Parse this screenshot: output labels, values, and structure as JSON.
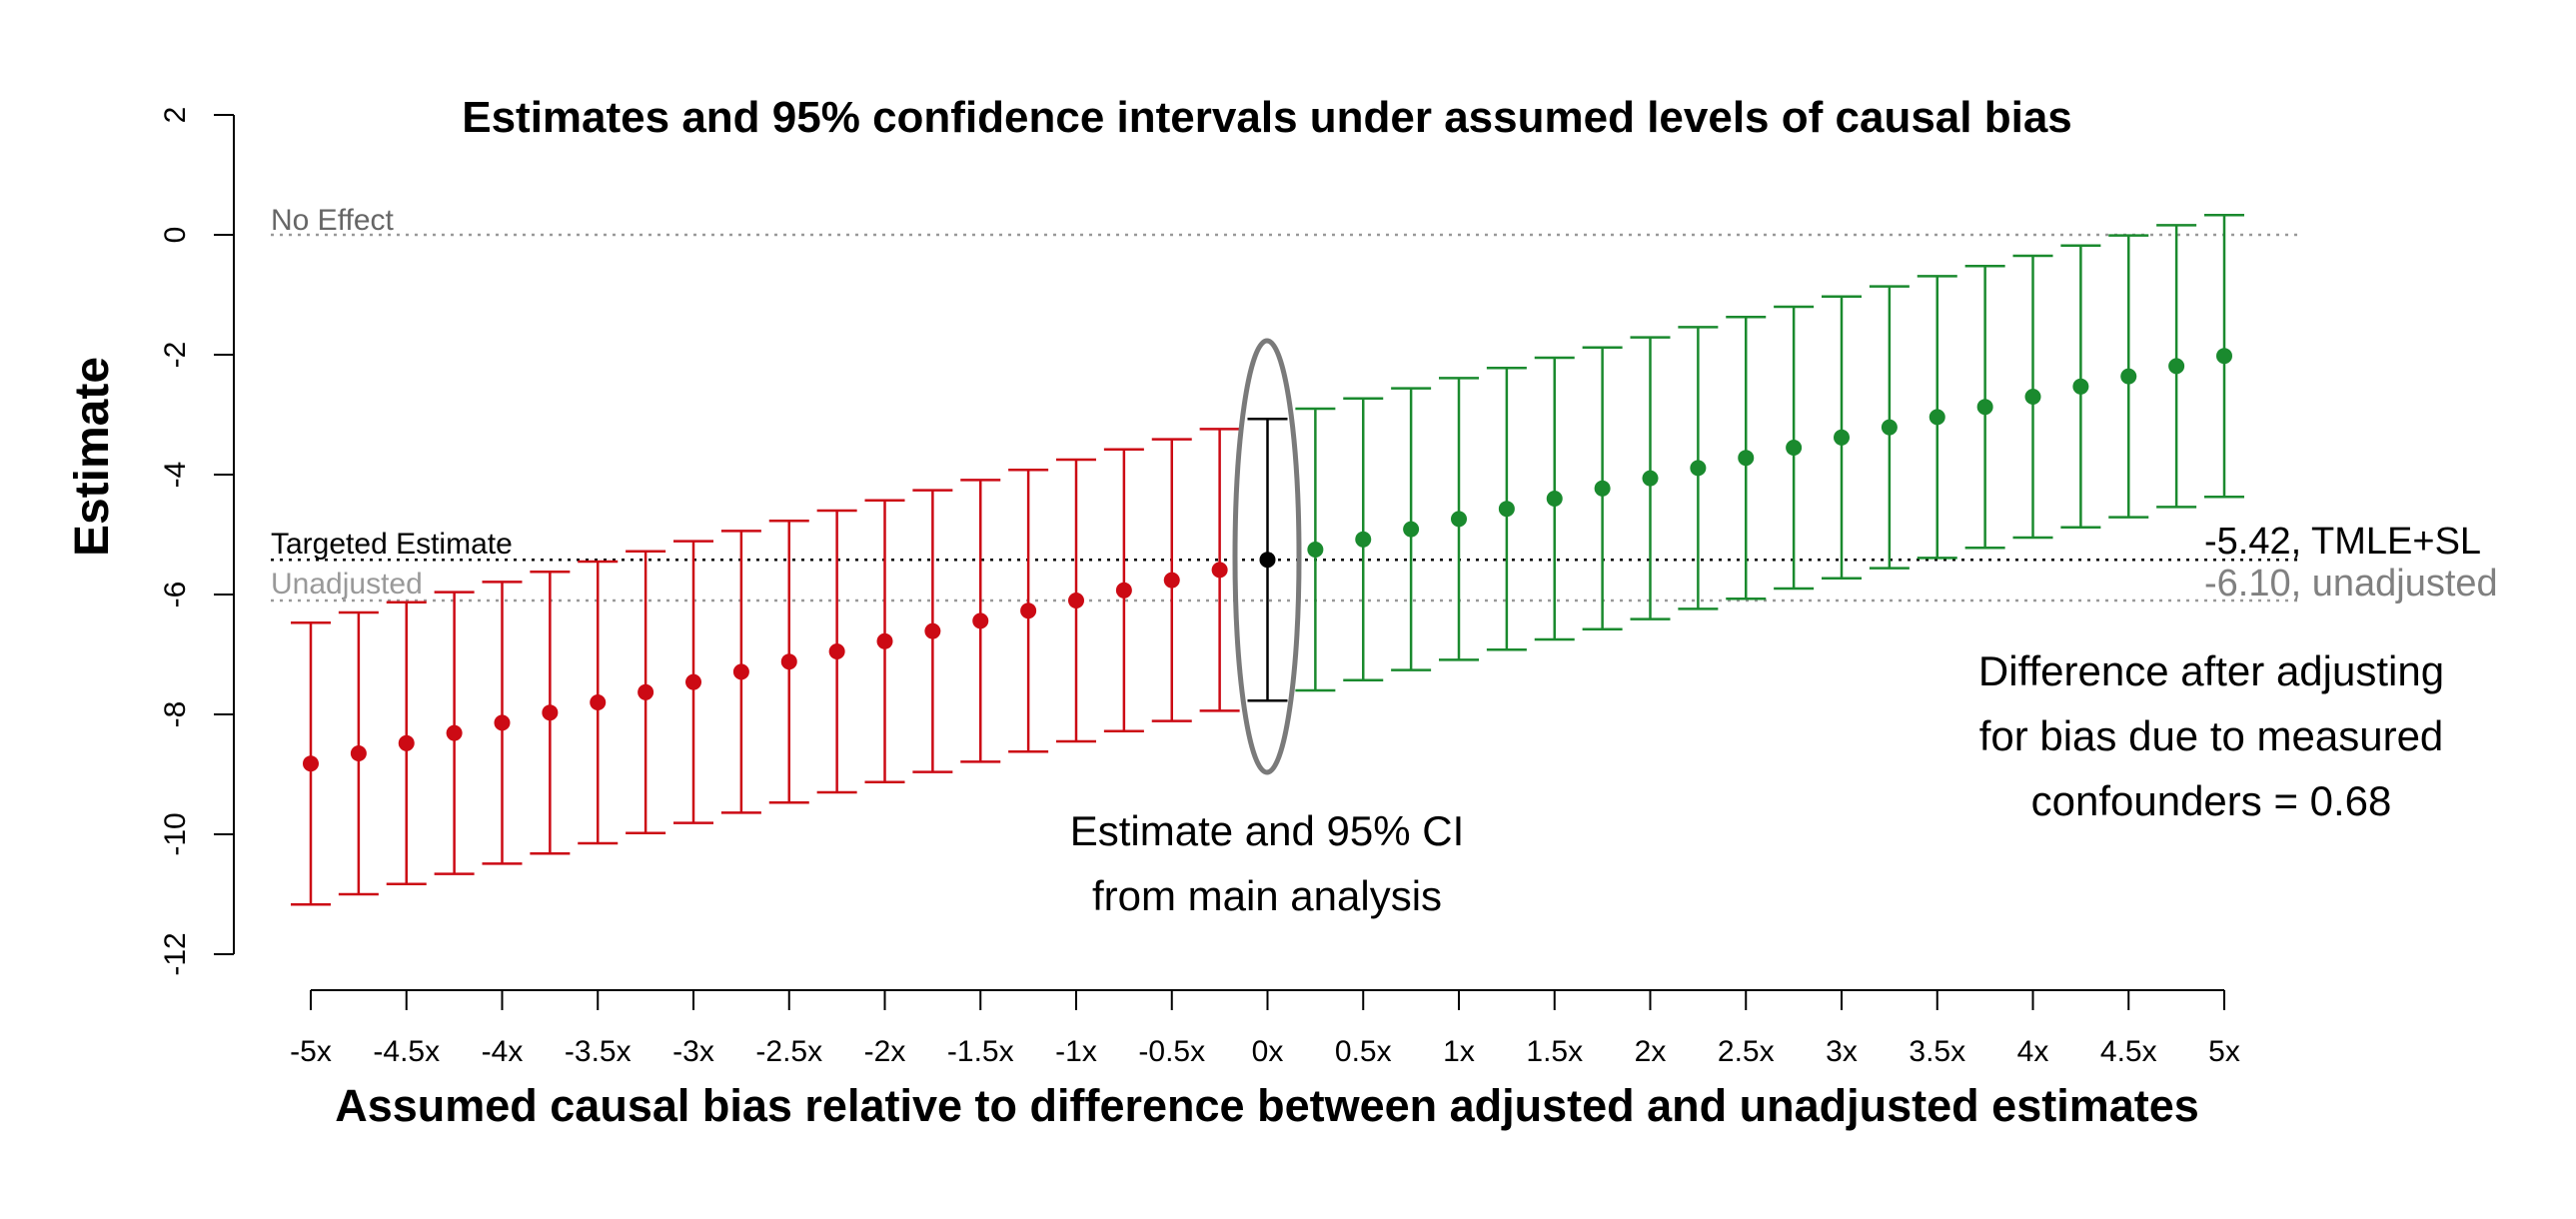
{
  "chart_data": {
    "type": "scatter",
    "title": "Estimates and 95% confidence intervals under assumed levels of causal bias",
    "xlabel": "Assumed causal bias relative to difference between adjusted and unadjusted estimates",
    "ylabel": "Estimate",
    "ylim": [
      -12,
      2
    ],
    "y_ticks": [
      2,
      0,
      -2,
      -4,
      -6,
      -8,
      -10,
      -12
    ],
    "x_ticks": [
      -5,
      -4.5,
      -4,
      -3.5,
      -3,
      -2.5,
      -2,
      -1.5,
      -1,
      -0.5,
      0,
      0.5,
      1,
      1.5,
      2,
      2.5,
      3,
      3.5,
      4,
      4.5,
      5
    ],
    "x_tick_labels": [
      "-5x",
      "-4.5x",
      "-4x",
      "-3.5x",
      "-3x",
      "-2.5x",
      "-2x",
      "-1.5x",
      "-1x",
      "-0.5x",
      "0x",
      "0.5x",
      "1x",
      "1.5x",
      "2x",
      "2.5x",
      "3x",
      "3.5x",
      "4x",
      "4.5x",
      "5x"
    ],
    "grid": false,
    "x": [
      -5,
      -4.75,
      -4.5,
      -4.25,
      -4,
      -3.75,
      -3.5,
      -3.25,
      -3,
      -2.75,
      -2.5,
      -2.25,
      -2,
      -1.75,
      -1.5,
      -1.25,
      -1,
      -0.75,
      -0.5,
      -0.25,
      0,
      0.25,
      0.5,
      0.75,
      1,
      1.25,
      1.5,
      1.75,
      2,
      2.25,
      2.5,
      2.75,
      3,
      3.25,
      3.5,
      3.75,
      4,
      4.25,
      4.5,
      4.75,
      5
    ],
    "estimate": [
      -8.82,
      -8.65,
      -8.48,
      -8.31,
      -8.14,
      -7.97,
      -7.8,
      -7.63,
      -7.46,
      -7.29,
      -7.12,
      -6.95,
      -6.78,
      -6.61,
      -6.44,
      -6.27,
      -6.1,
      -5.93,
      -5.76,
      -5.59,
      -5.42,
      -5.25,
      -5.08,
      -4.91,
      -4.74,
      -4.57,
      -4.4,
      -4.23,
      -4.06,
      -3.89,
      -3.72,
      -3.55,
      -3.38,
      -3.21,
      -3.04,
      -2.87,
      -2.7,
      -2.53,
      -2.36,
      -2.19,
      -2.02
    ],
    "ci_lower": [
      -11.17,
      -11.0,
      -10.83,
      -10.66,
      -10.49,
      -10.32,
      -10.15,
      -9.98,
      -9.81,
      -9.64,
      -9.47,
      -9.3,
      -9.13,
      -8.96,
      -8.79,
      -8.62,
      -8.45,
      -8.28,
      -8.11,
      -7.94,
      -7.77,
      -7.6,
      -7.43,
      -7.26,
      -7.09,
      -6.92,
      -6.75,
      -6.58,
      -6.41,
      -6.24,
      -6.07,
      -5.9,
      -5.73,
      -5.56,
      -5.39,
      -5.22,
      -5.05,
      -4.88,
      -4.71,
      -4.54,
      -4.37
    ],
    "ci_upper": [
      -6.47,
      -6.3,
      -6.13,
      -5.96,
      -5.79,
      -5.62,
      -5.45,
      -5.28,
      -5.11,
      -4.94,
      -4.77,
      -4.6,
      -4.43,
      -4.26,
      -4.09,
      -3.92,
      -3.75,
      -3.58,
      -3.41,
      -3.24,
      -3.07,
      -2.9,
      -2.73,
      -2.56,
      -2.39,
      -2.22,
      -2.05,
      -1.88,
      -1.71,
      -1.54,
      -1.37,
      -1.2,
      -1.03,
      -0.86,
      -0.69,
      -0.52,
      -0.35,
      -0.18,
      -0.01,
      0.16,
      0.33
    ],
    "colors": {
      "negative": "#cc0a14",
      "main": "#000000",
      "positive": "#1a8a2e",
      "no_effect_line": "#999999",
      "unadjusted": "#808080",
      "ellipse": "#7a7a7a"
    },
    "reference_lines": [
      {
        "label": "No Effect",
        "y": 0,
        "style": "dotted",
        "color": "#999999"
      },
      {
        "label": "Targeted Estimate",
        "y": -5.42,
        "style": "dotted",
        "color": "#000000"
      },
      {
        "label": "Unadjusted",
        "y": -6.1,
        "style": "dotted",
        "color": "#999999"
      }
    ],
    "annotations": {
      "tmle": "-5.42, TMLE+SL",
      "unadjusted": "-6.10, unadjusted",
      "difference_lines": [
        "Difference after adjusting",
        "for bias due to measured",
        "confounders = 0.68"
      ],
      "main_lines": [
        "Estimate and 95% CI",
        "from main analysis"
      ]
    }
  }
}
